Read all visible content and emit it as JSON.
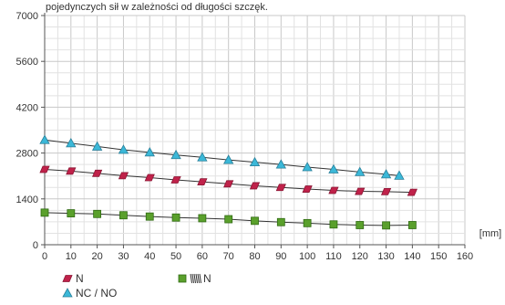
{
  "chart_data": {
    "type": "line",
    "title": "pojedynczych sił w zależności od długości szczęk.",
    "xlabel": "[mm]",
    "ylabel": "",
    "xlim": [
      0,
      160
    ],
    "ylim": [
      0,
      7000
    ],
    "x_ticks": [
      0,
      10,
      20,
      30,
      40,
      50,
      60,
      70,
      80,
      90,
      100,
      110,
      120,
      130,
      140,
      150,
      160
    ],
    "y_ticks": [
      0,
      1400,
      2800,
      4200,
      5600,
      7000
    ],
    "grid": true,
    "legend_position": "bottom-left",
    "series": [
      {
        "name": "NC / NO",
        "marker": "triangle",
        "color": "#3bb8d8",
        "x": [
          0,
          10,
          20,
          30,
          40,
          50,
          60,
          70,
          80,
          90,
          100,
          110,
          120,
          130,
          135
        ],
        "values": [
          3200,
          3100,
          3000,
          2900,
          2820,
          2740,
          2670,
          2590,
          2520,
          2450,
          2370,
          2300,
          2220,
          2150,
          2110
        ]
      },
      {
        "name": "N",
        "marker": "parallelogram",
        "color": "#c0224a",
        "x": [
          0,
          10,
          20,
          30,
          40,
          50,
          60,
          70,
          80,
          90,
          100,
          110,
          120,
          130,
          140
        ],
        "values": [
          2300,
          2250,
          2180,
          2110,
          2050,
          1980,
          1920,
          1860,
          1800,
          1750,
          1700,
          1660,
          1630,
          1620,
          1600
        ]
      },
      {
        "name": "N",
        "marker": "square",
        "color": "#5aa02c",
        "x": [
          0,
          10,
          20,
          30,
          40,
          50,
          60,
          70,
          80,
          90,
          100,
          110,
          120,
          130,
          140
        ],
        "values": [
          980,
          960,
          940,
          900,
          860,
          830,
          810,
          780,
          730,
          690,
          660,
          620,
          600,
          590,
          600
        ]
      }
    ],
    "legend": [
      {
        "label": "N",
        "marker": "parallelogram",
        "color": "#c0224a"
      },
      {
        "label": "N",
        "marker": "square",
        "color": "#5aa02c",
        "with_spring_icon": true
      },
      {
        "label": "NC / NO",
        "marker": "triangle",
        "color": "#3bb8d8"
      }
    ]
  }
}
